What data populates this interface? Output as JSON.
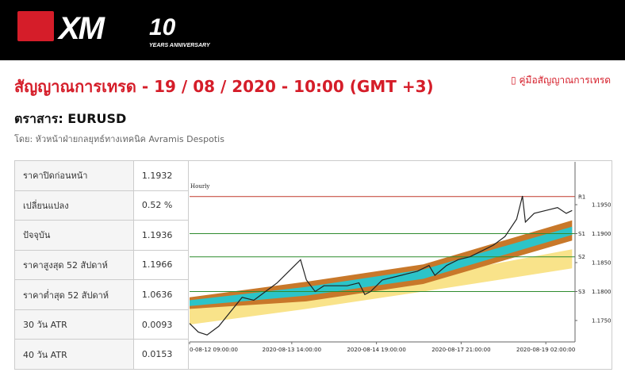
{
  "header": {
    "logo": "XM",
    "anniversary": "10",
    "anniversary_sub": "YEARS ANNIVERSARY"
  },
  "title": "สัญญาณการเทรด - 19 / 08 / 2020 - 10:00 (GMT +3)",
  "guide_link": "คู่มือสัญญาณการเทรด",
  "instrument": "ตราสาร: EURUSD",
  "byline": "โดย: หัวหน้าฝ่ายกลยุทธ์ทางเทคนิค Avramis Despotis",
  "table": {
    "rows": [
      [
        "ราคาปิดก่อนหน้า",
        "1.1932"
      ],
      [
        "เปลี่ยนแปลง",
        "0.52 %"
      ],
      [
        "ปัจจุบัน",
        "1.1936"
      ],
      [
        "ราคาสูงสุด 52 สัปดาห์",
        "1.1966"
      ],
      [
        "ราคาต่ำสุด 52 สัปดาห์",
        "1.0636"
      ],
      [
        "30 วัน ATR",
        "0.0093"
      ],
      [
        "40 วัน ATR",
        "0.0153"
      ]
    ]
  },
  "chart_data": {
    "type": "line",
    "title": "Hourly",
    "xlim": [
      0,
      132
    ],
    "xticks": [
      {
        "value": 0,
        "label": "0-08-12 09:00:00"
      },
      {
        "value": 35,
        "label": "2020-08-13 14:00:00"
      },
      {
        "value": 64,
        "label": "2020-08-14 19:00:00"
      },
      {
        "value": 93,
        "label": "2020-08-17 21:00:00"
      },
      {
        "value": 122,
        "label": "2020-08-19 02:00:00"
      }
    ],
    "ylim": [
      1.1713,
      1.2024
    ],
    "yticks": [
      {
        "value": 1.195,
        "label": "1.1950"
      },
      {
        "value": 1.19,
        "label": "1.1900"
      },
      {
        "value": 1.185,
        "label": "1.1850"
      },
      {
        "value": 1.18,
        "label": "1.1800"
      },
      {
        "value": 1.175,
        "label": "1.1750"
      }
    ],
    "levels": [
      {
        "name": "R1",
        "value": 1.1964,
        "color": "#c0392b"
      },
      {
        "name": "S1",
        "value": 1.19,
        "color": "#2e8b2e"
      },
      {
        "name": "S2",
        "value": 1.186,
        "color": "#2e8b2e"
      },
      {
        "name": "S3",
        "value": 1.18,
        "color": "#2e8b2e"
      }
    ],
    "series": [
      {
        "x": [
          0,
          3,
          6,
          10,
          14,
          18,
          22,
          26,
          30,
          34,
          38,
          40,
          43,
          46,
          50,
          54,
          58,
          60,
          62,
          66,
          70,
          74,
          78,
          82,
          84,
          88,
          92,
          96,
          100,
          104,
          108,
          112,
          114,
          115,
          118,
          122,
          126,
          129,
          131
        ],
        "values": [
          1.1745,
          1.173,
          1.1725,
          1.174,
          1.1765,
          1.179,
          1.1785,
          1.18,
          1.1815,
          1.1835,
          1.1855,
          1.182,
          1.18,
          1.181,
          1.181,
          1.181,
          1.1815,
          1.1795,
          1.18,
          1.182,
          1.1825,
          1.183,
          1.1835,
          1.1845,
          1.1828,
          1.1845,
          1.1855,
          1.186,
          1.187,
          1.188,
          1.1895,
          1.1925,
          1.1965,
          1.192,
          1.1935,
          1.194,
          1.1945,
          1.1935,
          1.194
        ],
        "color": "#222"
      }
    ],
    "bands": [
      {
        "color": "#f9e38a",
        "x": [
          0,
          40,
          80,
          131
        ],
        "upper": [
          1.1777,
          1.18,
          1.1825,
          1.1873
        ],
        "lower": [
          1.1743,
          1.177,
          1.18,
          1.184
        ]
      },
      {
        "color": "#c8782a",
        "x": [
          0,
          40,
          80,
          131
        ],
        "upper": [
          1.179,
          1.1817,
          1.1847,
          1.1923
        ],
        "lower": [
          1.177,
          1.1783,
          1.1813,
          1.1888
        ]
      },
      {
        "color": "#2cc4c8",
        "x": [
          0,
          40,
          80,
          131
        ],
        "upper": [
          1.1785,
          1.1808,
          1.1838,
          1.1912
        ],
        "lower": [
          1.1775,
          1.1793,
          1.1822,
          1.1898
        ]
      }
    ]
  }
}
